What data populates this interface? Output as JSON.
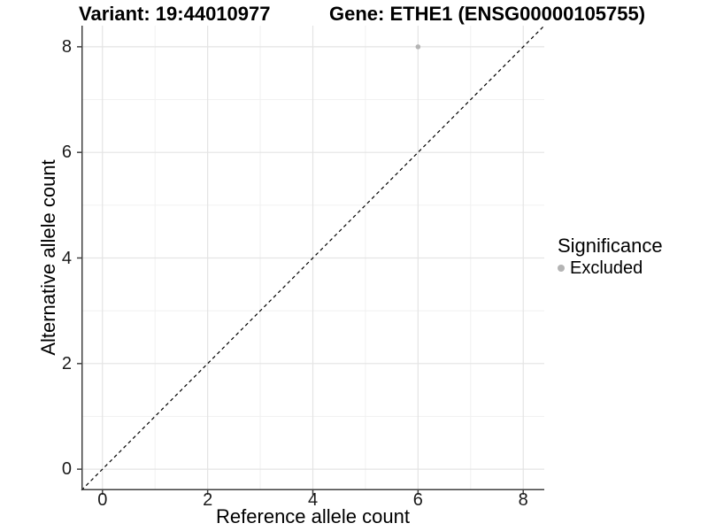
{
  "chart_data": {
    "type": "scatter",
    "title_variant": "Variant: 19:44010977",
    "title_gene": "Gene: ETHE1 (ENSG00000105755)",
    "xlabel": "Reference allele count",
    "ylabel": "Alternative allele count",
    "xlim": [
      -0.4,
      8.4
    ],
    "ylim": [
      -0.4,
      8.4
    ],
    "x_ticks": [
      0,
      2,
      4,
      6,
      8
    ],
    "y_ticks": [
      0,
      2,
      4,
      6,
      8
    ],
    "x_minor_ticks": [
      1,
      3,
      5,
      7
    ],
    "y_minor_ticks": [
      1,
      3,
      5,
      7
    ],
    "grid": "major+minor",
    "points": [
      {
        "x": 6,
        "y": 8,
        "significance": "Excluded"
      }
    ],
    "reference_line": {
      "style": "dashed",
      "equation": "y = x",
      "from": [
        -0.4,
        -0.4
      ],
      "to": [
        8.4,
        8.4
      ]
    },
    "legend": {
      "title": "Significance",
      "position": "right",
      "entries": [
        {
          "label": "Excluded",
          "marker": "circle",
          "color": "#b4b4b4"
        }
      ]
    }
  },
  "colors": {
    "background": "#ffffff",
    "point": "#b4b4b4",
    "grid_major": "#e4e4e4",
    "grid_minor": "#f1f1f1",
    "axis": "#404040",
    "reference_line": "#000000",
    "tick_label": "#1a1a1a"
  }
}
